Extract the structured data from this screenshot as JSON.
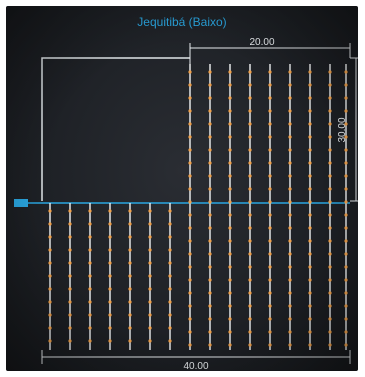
{
  "diagram": {
    "title": "Jequitibá (Baixo)",
    "dimension_top": "20.00",
    "dimension_side": "30.00",
    "dimension_bottom": "40.00",
    "level_marker": "±0",
    "colors": {
      "background": "#1e2126",
      "outline": "#e8ecef",
      "rebar": "#f2f4f5",
      "dots": "#f0a04a",
      "level_line": "#2aa6e0"
    }
  }
}
